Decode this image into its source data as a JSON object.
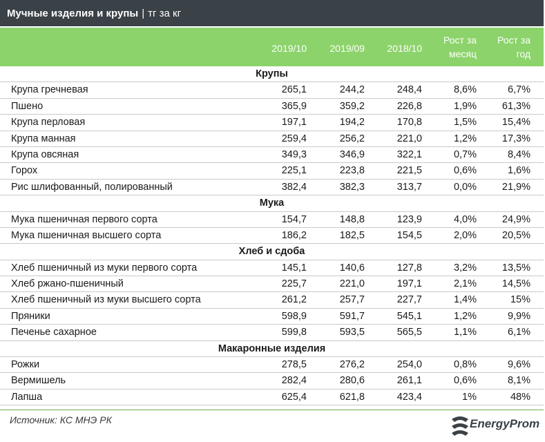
{
  "title": {
    "main": "Мучные изделия и крупы",
    "separator": "|",
    "unit": "тг за кг"
  },
  "chart_data": {
    "type": "table",
    "columns": [
      "2019/10",
      "2019/09",
      "2018/10",
      "Рост за месяц",
      "Рост за год"
    ],
    "column_lines": [
      [
        "2019/10"
      ],
      [
        "2019/09"
      ],
      [
        "2018/10"
      ],
      [
        "Рост за",
        "месяц"
      ],
      [
        "Рост за",
        "год"
      ]
    ],
    "sections": [
      {
        "name": "Крупы",
        "rows": [
          {
            "label": "Крупа гречневая",
            "values": [
              "265,1",
              "244,2",
              "248,4",
              "8,6%",
              "6,7%"
            ]
          },
          {
            "label": "Пшено",
            "values": [
              "365,9",
              "359,2",
              "226,8",
              "1,9%",
              "61,3%"
            ]
          },
          {
            "label": "Крупа перловая",
            "values": [
              "197,1",
              "194,2",
              "170,8",
              "1,5%",
              "15,4%"
            ]
          },
          {
            "label": "Крупа манная",
            "values": [
              "259,4",
              "256,2",
              "221,0",
              "1,2%",
              "17,3%"
            ]
          },
          {
            "label": "Крупа овсяная",
            "values": [
              "349,3",
              "346,9",
              "322,1",
              "0,7%",
              "8,4%"
            ]
          },
          {
            "label": "Горох",
            "values": [
              "225,1",
              "223,8",
              "221,5",
              "0,6%",
              "1,6%"
            ]
          },
          {
            "label": "Рис шлифованный, полированный",
            "values": [
              "382,4",
              "382,3",
              "313,7",
              "0,0%",
              "21,9%"
            ]
          }
        ]
      },
      {
        "name": "Мука",
        "rows": [
          {
            "label": "Мука пшеничная первого сорта",
            "values": [
              "154,7",
              "148,8",
              "123,9",
              "4,0%",
              "24,9%"
            ]
          },
          {
            "label": "Мука пшеничная высшего сорта",
            "values": [
              "186,2",
              "182,5",
              "154,5",
              "2,0%",
              "20,5%"
            ]
          }
        ]
      },
      {
        "name": "Хлеб и сдоба",
        "rows": [
          {
            "label": "Хлеб пшеничный из муки первого сорта",
            "values": [
              "145,1",
              "140,6",
              "127,8",
              "3,2%",
              "13,5%"
            ]
          },
          {
            "label": "Хлеб ржано-пшеничный",
            "values": [
              "225,7",
              "221,0",
              "197,1",
              "2,1%",
              "14,5%"
            ]
          },
          {
            "label": "Хлеб пшеничный из муки высшего сорта",
            "values": [
              "261,2",
              "257,7",
              "227,7",
              "1,4%",
              "15%"
            ]
          },
          {
            "label": "Пряники",
            "values": [
              "598,9",
              "591,7",
              "545,1",
              "1,2%",
              "9,9%"
            ]
          },
          {
            "label": "Печенье сахарное",
            "values": [
              "599,8",
              "593,5",
              "565,5",
              "1,1%",
              "6,1%"
            ]
          }
        ]
      },
      {
        "name": "Макаронные изделия",
        "rows": [
          {
            "label": "Рожки",
            "values": [
              "278,5",
              "276,2",
              "254,0",
              "0,8%",
              "9,6%"
            ]
          },
          {
            "label": "Вермишель",
            "values": [
              "282,4",
              "280,6",
              "261,1",
              "0,6%",
              "8,1%"
            ]
          },
          {
            "label": "Лапша",
            "values": [
              "625,4",
              "621,8",
              "423,4",
              "1%",
              "48%"
            ]
          }
        ]
      }
    ]
  },
  "footer": {
    "source": "Источник: КС МНЭ РК",
    "logo": "EnergyProm"
  },
  "colors": {
    "title_bg": "#3a4147",
    "header_bg": "#8cd36b",
    "accent": "#6cae4f"
  }
}
